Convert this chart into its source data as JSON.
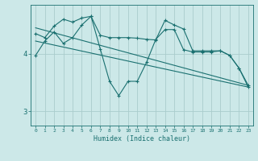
{
  "xlabel": "Humidex (Indice chaleur)",
  "bg_color": "#cce8e8",
  "line_color": "#1a7070",
  "grid_color": "#aacccc",
  "xlim": [
    -0.5,
    23.5
  ],
  "ylim": [
    2.75,
    4.85
  ],
  "yticks": [
    3,
    4
  ],
  "xticks": [
    0,
    1,
    2,
    3,
    4,
    5,
    6,
    7,
    8,
    9,
    10,
    11,
    12,
    13,
    14,
    15,
    16,
    17,
    18,
    19,
    20,
    21,
    22,
    23
  ],
  "line1_x": [
    0,
    1,
    2,
    3,
    4,
    5,
    6,
    7,
    8,
    9,
    10,
    11,
    12,
    13,
    14,
    15,
    16,
    17,
    18,
    19,
    20,
    21,
    22,
    23
  ],
  "line1_y": [
    4.35,
    4.28,
    4.48,
    4.6,
    4.55,
    4.62,
    4.65,
    4.32,
    4.28,
    4.28,
    4.28,
    4.27,
    4.25,
    4.24,
    4.58,
    4.5,
    4.43,
    4.05,
    4.05,
    4.05,
    4.05,
    3.97,
    3.75,
    3.45
  ],
  "line2_x": [
    0,
    1,
    2,
    3,
    4,
    5,
    6,
    7,
    8,
    9,
    10,
    11,
    12,
    13,
    14,
    15,
    16,
    17,
    18,
    19,
    20,
    21,
    22,
    23
  ],
  "line2_y": [
    3.97,
    4.22,
    4.38,
    4.18,
    4.28,
    4.5,
    4.65,
    4.08,
    3.52,
    3.27,
    3.52,
    3.52,
    3.85,
    4.25,
    4.42,
    4.42,
    4.07,
    4.03,
    4.03,
    4.03,
    4.05,
    3.97,
    3.75,
    3.42
  ],
  "line3_x": [
    0,
    23
  ],
  "line3_y": [
    4.45,
    3.45
  ],
  "line4_x": [
    0,
    23
  ],
  "line4_y": [
    4.22,
    3.42
  ]
}
